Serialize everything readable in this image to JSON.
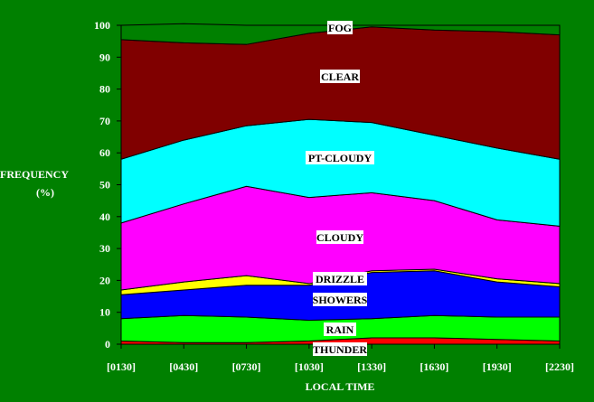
{
  "chart_data": {
    "type": "area",
    "stacked": true,
    "title": "",
    "xlabel": "LOCAL TIME",
    "ylabel_line1": "FREQUENCY",
    "ylabel_line2": "(%)",
    "categories": [
      "[0130]",
      "[0430]",
      "[0730]",
      "[1030]",
      "[1330]",
      "[1630]",
      "[1930]",
      "[2230]"
    ],
    "ylim": [
      0,
      100
    ],
    "yticks": [
      0,
      10,
      20,
      30,
      40,
      50,
      60,
      70,
      80,
      90,
      100
    ],
    "grid": false,
    "legend": "none (labels drawn inside areas)",
    "series": [
      {
        "name": "THUNDER",
        "color": "#ff0000",
        "values": [
          1,
          0.5,
          0.5,
          1,
          2,
          2,
          1.5,
          1
        ]
      },
      {
        "name": "RAIN",
        "color": "#00ff00",
        "values": [
          7,
          8.5,
          8,
          6.5,
          6,
          7,
          7,
          7.5
        ]
      },
      {
        "name": "SHOWERS",
        "color": "#0000ff",
        "values": [
          7.5,
          8,
          10,
          11,
          14.5,
          14,
          11,
          9.5
        ]
      },
      {
        "name": "DRIZZLE",
        "color": "#ffff00",
        "values": [
          1.5,
          2.5,
          3,
          0.5,
          0.5,
          0.5,
          1,
          1
        ]
      },
      {
        "name": "CLOUDY",
        "color": "#ff00ff",
        "values": [
          21,
          24.5,
          28,
          27,
          24.5,
          21.5,
          18.5,
          18
        ]
      },
      {
        "name": "PT-CLOUDY",
        "color": "#00ffff",
        "values": [
          20,
          20,
          19,
          24.5,
          22,
          20.5,
          22.5,
          21
        ]
      },
      {
        "name": "CLEAR",
        "color": "#800000",
        "values": [
          37.5,
          30.5,
          25.5,
          27,
          30,
          33,
          36.5,
          39
        ]
      },
      {
        "name": "FOG",
        "color": "#008000",
        "values": [
          4.5,
          6,
          6,
          2.5,
          0.5,
          1.5,
          2,
          3
        ]
      }
    ]
  }
}
